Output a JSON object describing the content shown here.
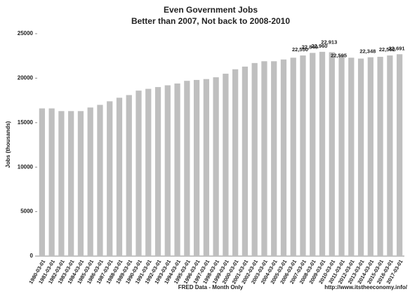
{
  "chart_data": {
    "type": "bar",
    "title": "Even Government Jobs",
    "subtitle": "Better than 2007, Not back to 2008-2010",
    "x_label": "FRED Data - Month Only",
    "y_label": "Jobs (thousands)",
    "source": "http://www.itstheeconomy.info/",
    "categories": [
      "1980-03-01",
      "1981-03-01",
      "1982-03-01",
      "1983-03-01",
      "1984-03-01",
      "1985-03-01",
      "1986-03-01",
      "1987-03-01",
      "1988-03-01",
      "1989-03-01",
      "1990-03-01",
      "1991-03-01",
      "1992-03-01",
      "1993-03-01",
      "1994-03-01",
      "1995-03-01",
      "1996-03-01",
      "1997-03-01",
      "1998-03-01",
      "1999-03-01",
      "2000-03-01",
      "2001-03-01",
      "2002-03-01",
      "2003-03-01",
      "2004-03-01",
      "2005-03-01",
      "2006-03-01",
      "2007-03-01",
      "2008-03-01",
      "2009-03-01",
      "2010-03-01",
      "2011-03-01",
      "2012-03-01",
      "2013-03-01",
      "2014-03-01",
      "2015-03-01",
      "2016-03-01",
      "2017-03-01"
    ],
    "values": [
      16600,
      16600,
      16300,
      16300,
      16300,
      16700,
      17000,
      17400,
      17800,
      18100,
      18600,
      18800,
      19000,
      19200,
      19400,
      19700,
      19800,
      19900,
      20100,
      20500,
      21000,
      21300,
      21700,
      21900,
      21900,
      22100,
      22300,
      22550,
      22840,
      22960,
      22913,
      22595,
      22300,
      22200,
      22348,
      22400,
      22552,
      22691
    ],
    "value_labels": [
      null,
      null,
      null,
      null,
      null,
      null,
      null,
      null,
      null,
      null,
      null,
      null,
      null,
      null,
      null,
      null,
      null,
      null,
      null,
      null,
      null,
      null,
      null,
      null,
      null,
      null,
      null,
      "22,550",
      "22,840",
      "22,960",
      "22,913",
      "22,595",
      null,
      null,
      "22,348",
      null,
      "22,552",
      "22,691"
    ],
    "color": "#bfbfbf",
    "ylim": [
      0,
      25000
    ],
    "yticks": [
      0,
      5000,
      10000,
      15000,
      20000,
      25000
    ],
    "grid": false
  }
}
